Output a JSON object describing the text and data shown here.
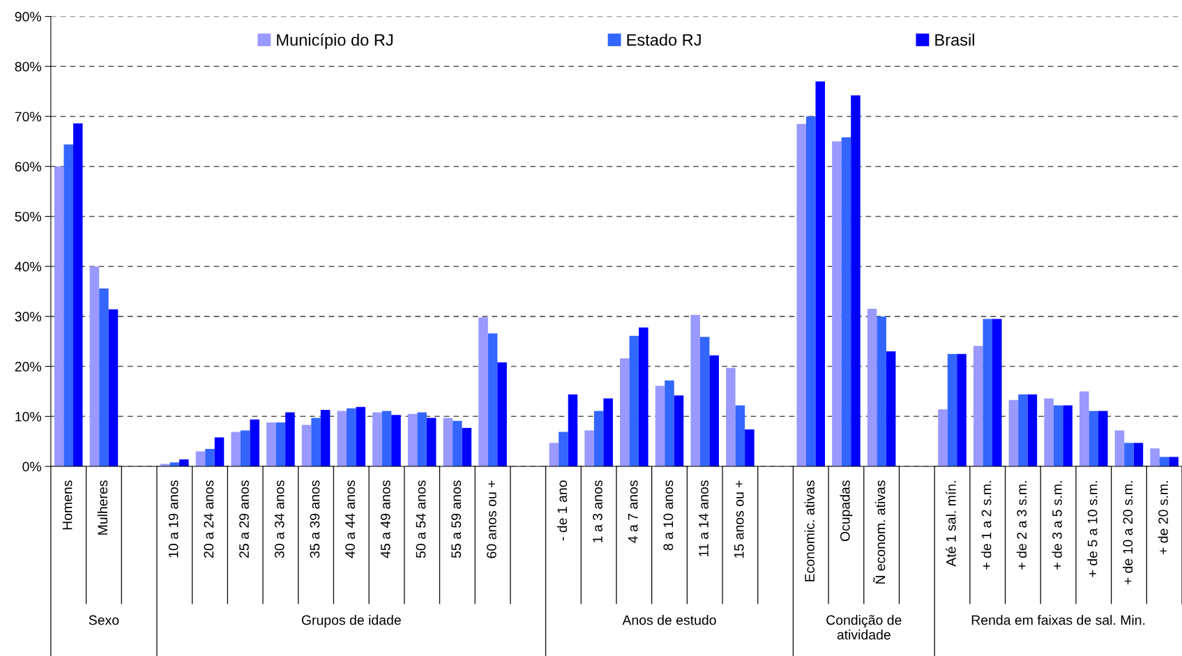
{
  "chart_data": {
    "type": "bar",
    "categories": [
      "Homens",
      "Mulheres",
      null,
      "10 a 19 anos",
      "20 a 24 anos",
      "25 a 29 anos",
      "30 a 34 anos",
      "35 a 39 anos",
      "40 a 44 anos",
      "45 a 49 anos",
      "50 a 54 anos",
      "55 a 59 anos",
      "60 anos ou +",
      null,
      "- de 1 ano",
      "1 a 3 anos",
      "4 a 7 anos",
      "8 a 10 anos",
      "11 a 14 anos",
      "15 anos ou +",
      null,
      "Economic. ativas",
      "Ocupadas",
      "Ñ econom. ativas",
      null,
      "Até 1 sal. mín.",
      "+ de 1 a 2 s.m.",
      "+ de 2 a 3 s.m.",
      "+ de 3 a 5 s.m.",
      "+ de 5 a 10 s.m.",
      "+ de 10 a 20 s.m.",
      "+ de 20 s.m."
    ],
    "series": [
      {
        "name": "Município do RJ",
        "color": "#9999ff",
        "values": [
          60.0,
          40.0,
          null,
          0.5,
          3.0,
          6.9,
          8.8,
          8.3,
          11.1,
          10.8,
          10.5,
          9.7,
          29.8,
          null,
          4.7,
          7.2,
          21.6,
          16.1,
          30.3,
          19.7,
          null,
          68.5,
          65.0,
          31.5,
          null,
          11.4,
          24.1,
          13.3,
          13.6,
          15.0,
          7.2,
          3.6
        ]
      },
      {
        "name": "Estado RJ",
        "color": "#3366ff",
        "values": [
          64.4,
          35.6,
          null,
          0.8,
          3.5,
          7.2,
          8.8,
          9.7,
          11.6,
          11.1,
          10.8,
          9.1,
          26.6,
          null,
          6.9,
          11.1,
          26.1,
          17.2,
          25.9,
          12.2,
          null,
          70.0,
          65.8,
          30.0,
          null,
          22.5,
          29.5,
          14.4,
          12.2,
          11.1,
          4.7,
          1.9
        ]
      },
      {
        "name": "Brasil",
        "color": "#0000ff",
        "values": [
          68.6,
          31.4,
          null,
          1.4,
          5.8,
          9.4,
          10.8,
          11.3,
          11.9,
          10.3,
          9.7,
          7.7,
          20.8,
          null,
          14.4,
          13.6,
          27.8,
          14.2,
          22.2,
          7.4,
          null,
          77.0,
          74.2,
          23.0,
          null,
          22.5,
          29.5,
          14.4,
          12.2,
          11.1,
          4.7,
          1.9
        ]
      }
    ],
    "annotations": [
      "Sexo",
      "Grupos de idade",
      "Anos de estudo",
      "Condição de\natividade",
      "Renda em faixas de sal. Min."
    ],
    "ylim": [
      0,
      90
    ],
    "yticks": [
      {
        "value": 0,
        "label": "0%"
      },
      {
        "value": 10,
        "label": "10%"
      },
      {
        "value": 20,
        "label": "20%"
      },
      {
        "value": 30,
        "label": "30%"
      },
      {
        "value": 40,
        "label": "40%"
      },
      {
        "value": 50,
        "label": "50%"
      },
      {
        "value": 60,
        "label": "60%"
      },
      {
        "value": 70,
        "label": "70%"
      },
      {
        "value": 80,
        "label": "80%"
      },
      {
        "value": 90,
        "label": "90%"
      }
    ],
    "grid": "y",
    "legend": "top"
  }
}
